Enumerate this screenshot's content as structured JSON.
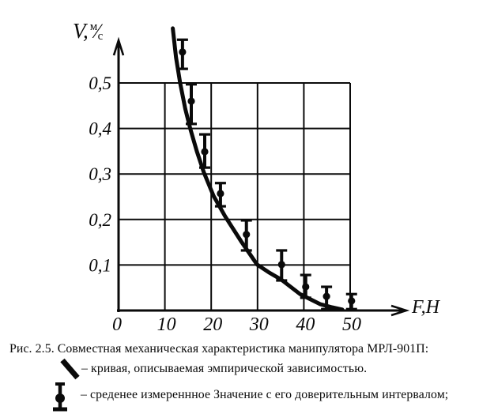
{
  "figure": {
    "y_axis_label": {
      "prefix": "V,",
      "numerator": "м",
      "slash": "⁄",
      "denominator": "с"
    },
    "x_axis_label": "F,H",
    "origin_label": "0"
  },
  "chart_data": {
    "type": "line",
    "title": "Совместная механическая характеристика манипулятора МРЛ-901П",
    "xlabel": "F,H",
    "ylabel": "V, м/с",
    "xlim": [
      0,
      55
    ],
    "ylim": [
      0,
      0.63
    ],
    "x_ticks": [
      0,
      10,
      20,
      30,
      40,
      50
    ],
    "x_tick_labels": [
      "0",
      "10",
      "20",
      "30",
      "40",
      "50"
    ],
    "y_ticks": [
      0.1,
      0.2,
      0.3,
      0.4,
      0.5
    ],
    "y_tick_labels": [
      "0,1",
      "0,2",
      "0,3",
      "0,4",
      "0,5"
    ],
    "grid": true,
    "legend_position": "below-caption",
    "series": [
      {
        "name": "кривая, описываемая эмпирической зависимостью",
        "type": "curve",
        "points": [
          [
            11.7,
            0.62
          ],
          [
            12.4,
            0.556
          ],
          [
            13.3,
            0.5
          ],
          [
            14.4,
            0.443
          ],
          [
            15.5,
            0.399
          ],
          [
            16.9,
            0.35
          ],
          [
            18.4,
            0.304
          ],
          [
            20.5,
            0.252
          ],
          [
            23.0,
            0.207
          ],
          [
            26.4,
            0.153
          ],
          [
            29.9,
            0.101
          ],
          [
            32.4,
            0.084
          ],
          [
            35.1,
            0.068
          ],
          [
            39.2,
            0.036
          ],
          [
            43.5,
            0.014
          ],
          [
            46.1,
            0.007
          ],
          [
            48.3,
            0.002
          ]
        ]
      },
      {
        "name": "среднее измеренное значение с доверительным интервалом",
        "type": "scatter-errorbar",
        "points": [
          {
            "f": 13.8,
            "v": 0.568,
            "v_hi": 0.595,
            "v_lo": 0.531
          },
          {
            "f": 15.7,
            "v": 0.46,
            "v_hi": 0.497,
            "v_lo": 0.41
          },
          {
            "f": 18.6,
            "v": 0.349,
            "v_hi": 0.387,
            "v_lo": 0.314
          },
          {
            "f": 22.0,
            "v": 0.257,
            "v_hi": 0.28,
            "v_lo": 0.229
          },
          {
            "f": 27.6,
            "v": 0.167,
            "v_hi": 0.198,
            "v_lo": 0.132
          },
          {
            "f": 35.2,
            "v": 0.101,
            "v_hi": 0.132,
            "v_lo": 0.066
          },
          {
            "f": 40.4,
            "v": 0.052,
            "v_hi": 0.078,
            "v_lo": 0.028
          },
          {
            "f": 44.9,
            "v": 0.031,
            "v_hi": 0.052,
            "v_lo": 0.003
          },
          {
            "f": 50.3,
            "v": 0.021,
            "v_hi": 0.036,
            "v_lo": 0.003
          }
        ]
      }
    ]
  },
  "caption": {
    "title": "Рис. 2.5. Совместная механическая характеристика манипулятора МРЛ-901П:",
    "legend": [
      {
        "icon": "curve-stroke-icon",
        "label": "– кривая, описываемая эмпирической зависимостью."
      },
      {
        "icon": "error-bar-icon",
        "label": "– среденее измереннное Значение с его доверительным интервалом;"
      }
    ]
  },
  "colors": {
    "ink": "#0a0a0a",
    "paper": "#ffffff"
  }
}
